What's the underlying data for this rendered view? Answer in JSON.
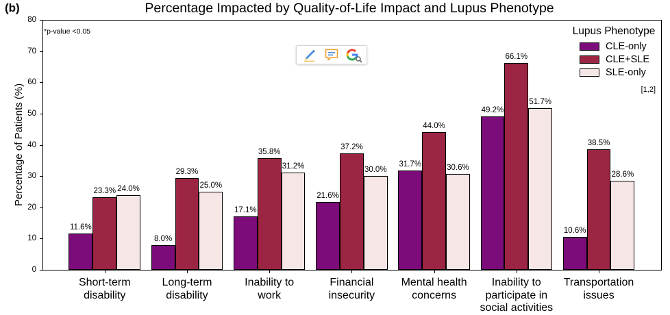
{
  "panel_label": "(b)",
  "toolbar": {
    "icons": [
      "pencil-icon",
      "comment-icon",
      "google-lens-icon"
    ]
  },
  "chart_data": {
    "type": "bar",
    "title": "Percentage Impacted by Quality-of-Life Impact and Lupus Phenotype",
    "ylabel": "Percentage of Patients (%)",
    "ylim": [
      0,
      80
    ],
    "yticks": [
      0,
      10,
      20,
      30,
      40,
      50,
      60,
      70,
      80
    ],
    "grid": false,
    "categories": [
      "Short-term\ndisability",
      "Long-term\ndisability",
      "Inability to\nwork",
      "Financial\ninsecurity",
      "Mental health\nconcerns",
      "Inability to\nparticipate in\nsocial activities",
      "Transportation\nissues"
    ],
    "series": [
      {
        "name": "CLE-only",
        "color": "#7b0c7a",
        "values": [
          11.6,
          8.0,
          17.1,
          21.6,
          31.7,
          49.2,
          10.6
        ],
        "labels": [
          "11.6%",
          "8.0%",
          "17.1%",
          "21.6%",
          "31.7%",
          "49.2%",
          "10.6%"
        ]
      },
      {
        "name": "CLE+SLE",
        "color": "#9b2542",
        "values": [
          23.3,
          29.3,
          35.8,
          37.2,
          44.0,
          66.1,
          38.5
        ],
        "labels": [
          "23.3%",
          "29.3%",
          "35.8%",
          "37.2%",
          "44.0%",
          "66.1%",
          "38.5%"
        ]
      },
      {
        "name": "SLE-only",
        "color": "#f7e6e6",
        "values": [
          24.0,
          25.0,
          31.2,
          30.0,
          30.6,
          51.7,
          28.6
        ],
        "labels": [
          "24.0%",
          "25.0%",
          "31.2%",
          "30.0%",
          "30.6%",
          "51.7%",
          "28.6%"
        ]
      }
    ],
    "legend": {
      "title": "Lupus Phenotype",
      "placement": "top-right"
    },
    "annotations": {
      "p_value_note": "*p-value <0.05",
      "reference": "[1,2]"
    }
  }
}
